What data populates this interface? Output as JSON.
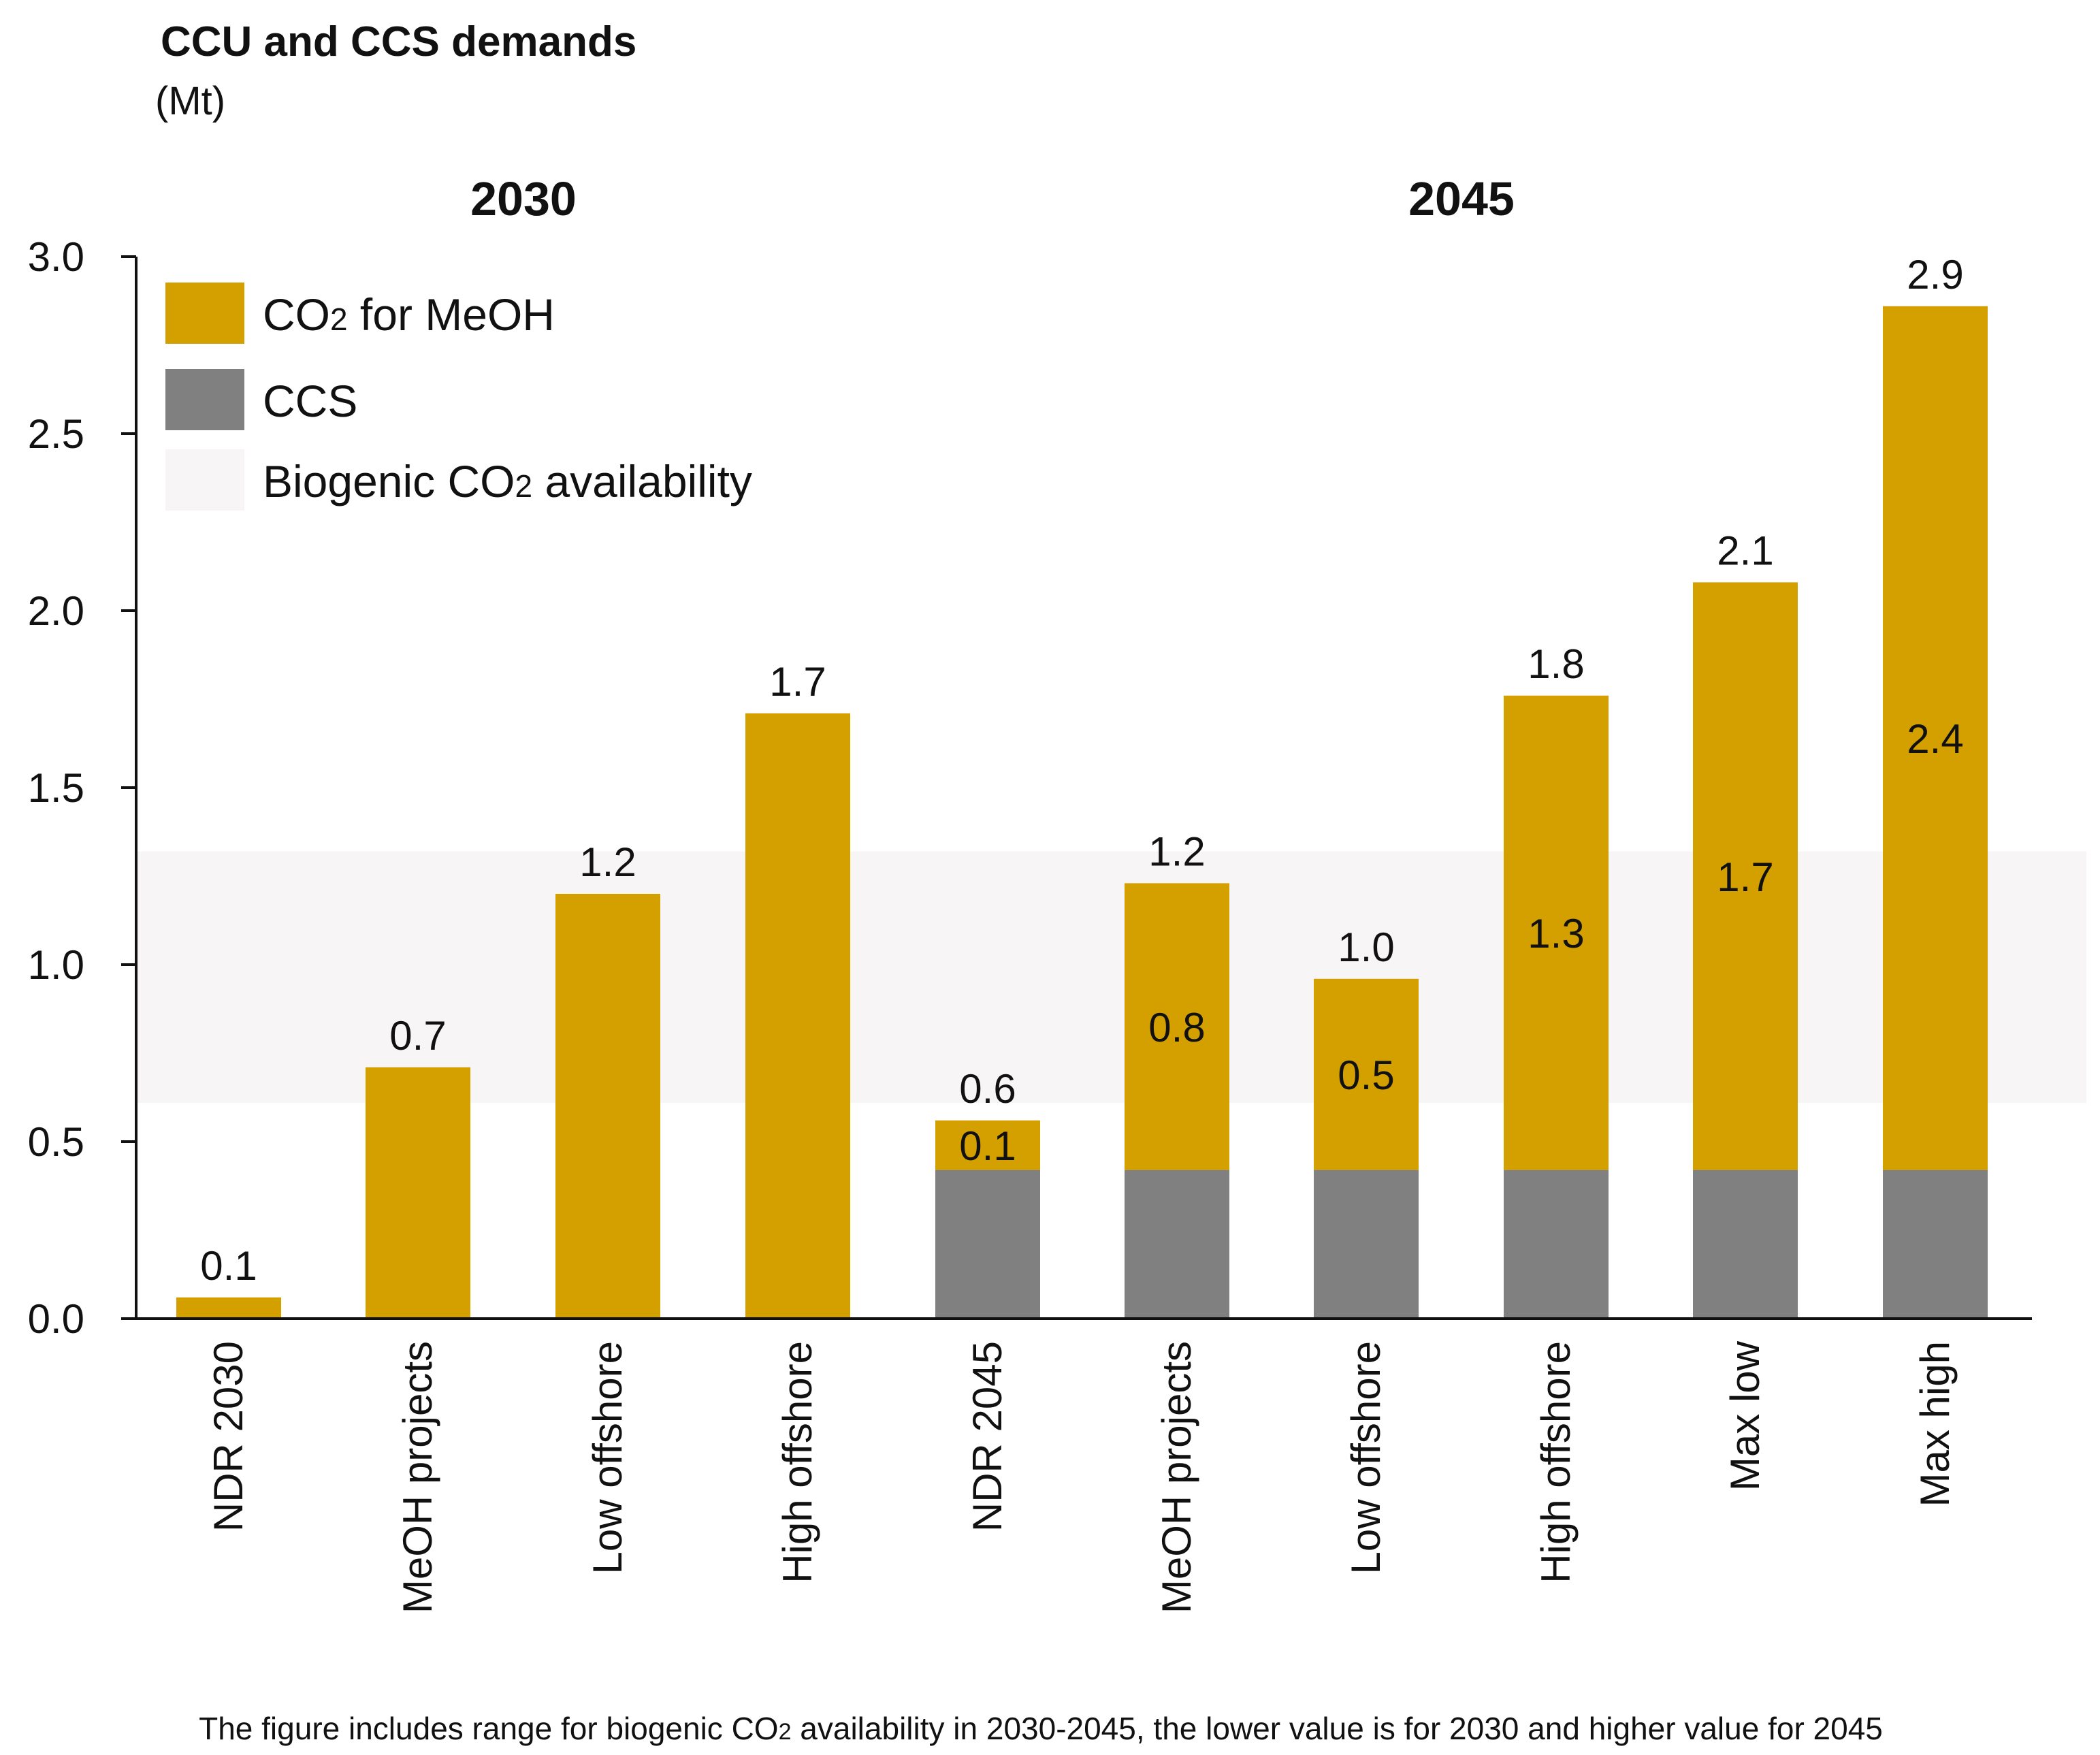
{
  "chart_data": {
    "type": "bar",
    "stacked": true,
    "title": "CCU and CCS demands",
    "subtitle": "(Mt)",
    "ylim": [
      0,
      3.0
    ],
    "yticks": [
      "0.0",
      "0.5",
      "1.0",
      "1.5",
      "2.0",
      "2.5",
      "3.0"
    ],
    "group_labels": [
      {
        "label": "2030",
        "categories": [
          0,
          3
        ]
      },
      {
        "label": "2045",
        "categories": [
          4,
          9
        ]
      }
    ],
    "categories": [
      "NDR 2030",
      "MeOH projects",
      "Low offshore",
      "High offshore",
      "NDR 2045",
      "MeOH projects",
      "Low offshore",
      "High offshore",
      "Max low",
      "Max high"
    ],
    "series": [
      {
        "name": "CCS",
        "color": "#808080",
        "values": [
          0,
          0,
          0,
          0,
          0.42,
          0.42,
          0.42,
          0.42,
          0.42,
          0.42
        ]
      },
      {
        "name": "CO2 for MeOH",
        "color": "#d4a000",
        "values": [
          0.06,
          0.71,
          1.2,
          1.71,
          0.14,
          0.81,
          0.54,
          1.34,
          1.66,
          2.44
        ]
      }
    ],
    "total_labels": [
      "0.1",
      "0.7",
      "1.2",
      "1.7",
      "0.6",
      "1.2",
      "1.0",
      "1.8",
      "2.1",
      "2.9"
    ],
    "segment_labels": [
      null,
      null,
      null,
      null,
      "0.1",
      "0.8",
      "0.5",
      "1.3",
      "1.7",
      "2.4"
    ],
    "band": {
      "name": "Biogenic CO2 availability",
      "from": 0.61,
      "to": 1.32,
      "color": "#f7f5f6"
    },
    "legend": [
      {
        "label": "CO",
        "sub": "2",
        "rest": " for MeOH",
        "color": "#d4a000"
      },
      {
        "label": "CCS",
        "sub": "",
        "rest": "",
        "color": "#808080"
      },
      {
        "label": "Biogenic CO",
        "sub": "2",
        "rest": " availability",
        "color": "#f7f5f6"
      }
    ],
    "legend_position": "top-left",
    "note": {
      "pre": "The figure includes range for biogenic CO",
      "sub": "2",
      "post": " availability in 2030-2045, the lower value is for 2030 and higher value for 2045"
    }
  }
}
